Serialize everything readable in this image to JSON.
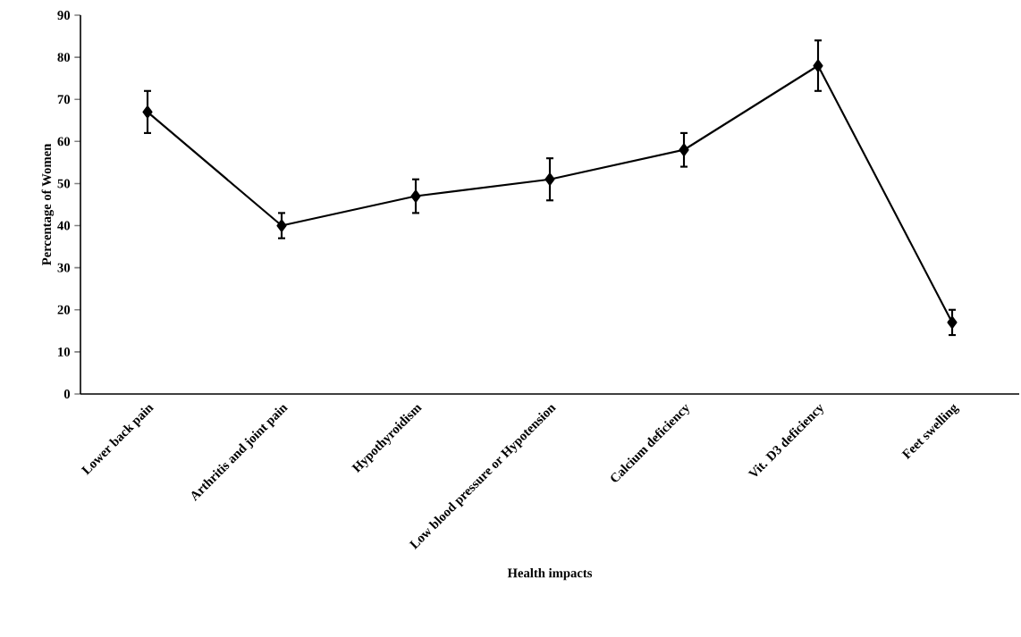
{
  "chart_data": {
    "type": "line",
    "xlabel": "Health impacts",
    "ylabel": "Percentage of Women",
    "categories": [
      "Lower back pain",
      "Arthritis and joint pain",
      "Hypothyroidism",
      "Low blood pressure or Hypotension",
      "Calcium deficiency",
      "Vit. D3 deficiency",
      "Feet swelling"
    ],
    "values": [
      67,
      40,
      47,
      51,
      58,
      78,
      17
    ],
    "errors": [
      5,
      3,
      4,
      5,
      4,
      6,
      3
    ],
    "color": "#000000",
    "marker": "diamond",
    "line_style": "solid",
    "ylim": [
      0,
      90
    ],
    "yticks": [
      0,
      10,
      20,
      30,
      40,
      50,
      60,
      70,
      80,
      90
    ]
  }
}
